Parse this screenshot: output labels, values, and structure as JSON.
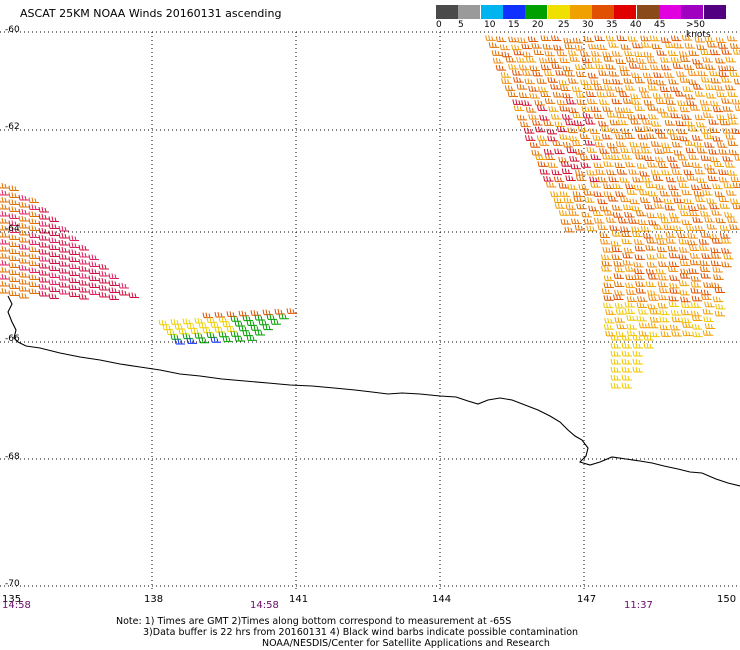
{
  "title": "ASCAT 25KM NOAA Winds 20160131 ascending",
  "legend": {
    "labels": [
      "0",
      "5",
      "10",
      "15",
      "20",
      "25",
      "30",
      "35",
      "40",
      "45",
      ">50 knots"
    ],
    "colors": [
      "#4a4a4a",
      "#9a9a9a",
      "#00b4f0",
      "#1030ff",
      "#00a000",
      "#f0e000",
      "#f0a000",
      "#e05000",
      "#e00000",
      "#8a4a1a",
      "#e000e0",
      "#a000c0",
      "#500080"
    ]
  },
  "axes": {
    "lat_labels": [
      "-60",
      "-62",
      "-64",
      "-66",
      "-68",
      "-70"
    ],
    "lon_labels": [
      "135",
      "138",
      "141",
      "144",
      "147",
      "150"
    ],
    "times": [
      "14:58",
      "14:58",
      "11:37"
    ]
  },
  "notes": {
    "line1": "Note: 1) Times are GMT 2)Times along bottom correspond to measurement at -65S",
    "line2": "3)Data buffer is 22 hrs from 20160131 4) Black wind barbs indicate possible contamination",
    "line3": "NOAA/NESDIS/Center for Satellite Applications and Research"
  },
  "colors": {
    "coast": "#000000",
    "grid": "#000000",
    "time_text": "#6a0a6a"
  }
}
